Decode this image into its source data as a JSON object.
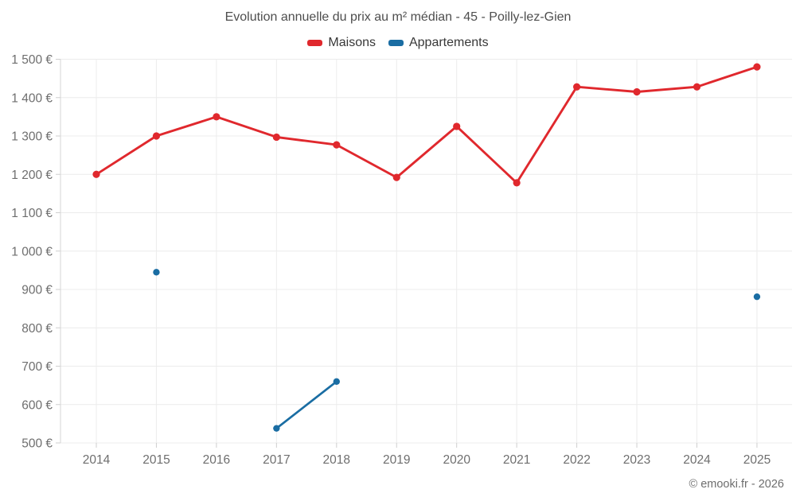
{
  "chart": {
    "title": "Evolution annuelle du prix au m² médian - 45 - Poilly-lez-Gien",
    "footer": "© emooki.fr - 2026"
  },
  "chart_data": {
    "type": "line",
    "title": "Evolution annuelle du prix au m² médian - 45 - Poilly-lez-Gien",
    "x": [
      2014,
      2015,
      2016,
      2017,
      2018,
      2019,
      2020,
      2021,
      2022,
      2023,
      2024,
      2025
    ],
    "xtick_labels": [
      "2014",
      "2015",
      "2016",
      "2017",
      "2018",
      "2019",
      "2020",
      "2021",
      "2022",
      "2023",
      "2024",
      "2025"
    ],
    "series": [
      {
        "name": "Maisons",
        "color": "#e0282d",
        "values": [
          1200,
          1300,
          1350,
          1297,
          1277,
          1192,
          1325,
          1178,
          1428,
          1415,
          1428,
          1480
        ]
      },
      {
        "name": "Appartements",
        "color": "#1a6da3",
        "values": [
          null,
          945,
          null,
          538,
          660,
          null,
          null,
          null,
          null,
          null,
          null,
          881
        ]
      }
    ],
    "ylim": [
      500,
      1500
    ],
    "ytick_step": 100,
    "ytick_labels": [
      "500 €",
      "600 €",
      "700 €",
      "800 €",
      "900 €",
      "1 000 €",
      "1 100 €",
      "1 200 €",
      "1 300 €",
      "1 400 €",
      "1 500 €"
    ],
    "xlabel": "",
    "ylabel": "",
    "grid": true,
    "legend_position": "top-center",
    "marker_style": "filled-circle"
  }
}
